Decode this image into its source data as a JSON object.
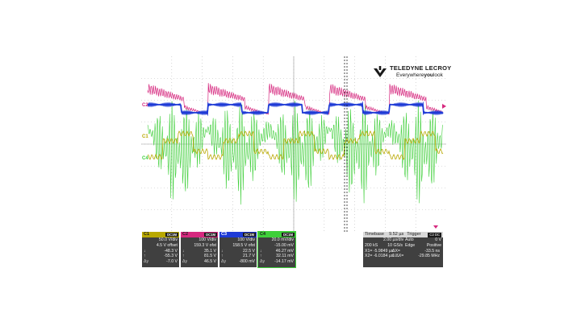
{
  "brand": {
    "name": "TELEDYNE LECROY",
    "tagline_pre": "Everywhere",
    "tagline_bold": "you",
    "tagline_post": "look"
  },
  "colors": {
    "c1": "#b8a800",
    "c2": "#d6297f",
    "c3": "#1f3bd6",
    "c4": "#3fcf3a",
    "grid": "#bbbbbb",
    "panel": "#404040"
  },
  "markers": {
    "c1": "C1",
    "c2": "C2",
    "c3": "C3",
    "c4": "C4"
  },
  "channels": [
    {
      "name": "C1",
      "tag": "DC1M",
      "rows": [
        [
          "",
          "50.0 V/div"
        ],
        [
          "",
          "4.5 V offset"
        ],
        [
          "↓",
          "-48.3 V"
        ],
        [
          "↑",
          "-55.3 V"
        ],
        [
          "Δy",
          "-7.0 V"
        ]
      ]
    },
    {
      "name": "C2",
      "tag": "DC1M",
      "rows": [
        [
          "",
          "100 V/div"
        ],
        [
          "",
          "159.3 V ofst"
        ],
        [
          "↓",
          "35.1 V"
        ],
        [
          "↑",
          "81.5 V"
        ],
        [
          "Δy",
          "46.5 V"
        ]
      ]
    },
    {
      "name": "C3",
      "tag": "DC1M",
      "rows": [
        [
          "",
          "100 V/div"
        ],
        [
          "",
          "158.5 V ofst"
        ],
        [
          "↓",
          "22.5 V"
        ],
        [
          "↑",
          "21.7 V"
        ],
        [
          "Δy",
          "-800 mV"
        ]
      ]
    },
    {
      "name": "C4",
      "tag": "DC1M",
      "rows": [
        [
          "",
          "20.0 mV/div"
        ],
        [
          "",
          "-15.00 mV"
        ],
        [
          "↓",
          "46.27 mV"
        ],
        [
          "↑",
          "32.11 mV"
        ],
        [
          "Δy",
          "-14.17 mV"
        ]
      ]
    }
  ],
  "timebase": {
    "label": "Timebase",
    "value": "9.52 µs",
    "trigger_label": "Trigger",
    "trigger_tag": "C2 DC",
    "rows": [
      [
        "",
        "2.00 µs/div",
        "Auto",
        "0 V"
      ],
      [
        "200 kS",
        "10 GS/s",
        "Edge",
        "Positive"
      ]
    ],
    "cursors": [
      [
        "X1= -5.9849 µs",
        "ΔX=",
        "-33.5 ns"
      ],
      [
        "X2= -6.0184 µs",
        "1/ΔX=",
        "-29.85 MHz"
      ]
    ]
  }
}
